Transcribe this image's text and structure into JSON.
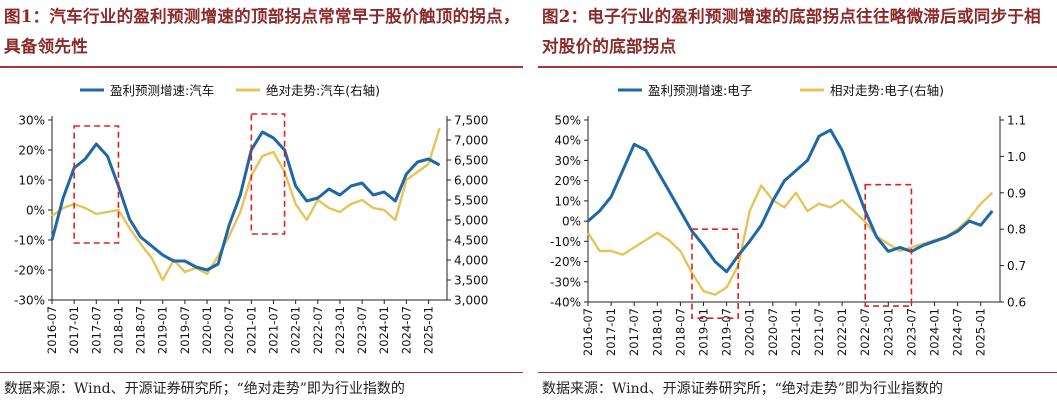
{
  "panels": [
    {
      "title": "图1：汽车行业的盈利预测增速的顶部拐点常常早于股价触顶的拐点，具备领先性",
      "source": "数据来源：Wind、开源证券研究所；“绝对走势”即为行业指数的",
      "chart_data": {
        "type": "line",
        "series": [
          {
            "name": "盈利预测增速:汽车",
            "axis": "left",
            "color": "#1f67a6",
            "x": [
              "2016-07",
              "2016-10",
              "2017-01",
              "2017-04",
              "2017-07",
              "2017-10",
              "2018-01",
              "2018-04",
              "2018-07",
              "2018-10",
              "2019-01",
              "2019-04",
              "2019-07",
              "2019-10",
              "2020-01",
              "2020-04",
              "2020-07",
              "2020-10",
              "2021-01",
              "2021-04",
              "2021-07",
              "2021-10",
              "2022-01",
              "2022-04",
              "2022-07",
              "2022-10",
              "2023-01",
              "2023-04",
              "2023-07",
              "2023-10",
              "2024-01",
              "2024-04",
              "2024-07",
              "2024-10",
              "2025-01",
              "2025-04"
            ],
            "values": [
              -10,
              4,
              14,
              17,
              22,
              18,
              8,
              -3,
              -9,
              -12,
              -15,
              -17,
              -17,
              -19,
              -20,
              -18,
              -5,
              5,
              20,
              26,
              24,
              20,
              8,
              3,
              4,
              7,
              5,
              8,
              9,
              5,
              6,
              3,
              12,
              16,
              17,
              15
            ]
          },
          {
            "name": "绝对走势:汽车(右轴)",
            "axis": "right",
            "color": "#e6c45a",
            "x": [
              "2016-07",
              "2016-10",
              "2017-01",
              "2017-04",
              "2017-07",
              "2017-10",
              "2018-01",
              "2018-04",
              "2018-07",
              "2018-10",
              "2019-01",
              "2019-04",
              "2019-07",
              "2019-10",
              "2020-01",
              "2020-04",
              "2020-07",
              "2020-10",
              "2021-01",
              "2021-04",
              "2021-07",
              "2021-10",
              "2022-01",
              "2022-04",
              "2022-07",
              "2022-10",
              "2023-01",
              "2023-04",
              "2023-07",
              "2023-10",
              "2024-01",
              "2024-04",
              "2024-07",
              "2024-10",
              "2025-01",
              "2025-04"
            ],
            "values": [
              5100,
              5300,
              5400,
              5300,
              5150,
              5200,
              5250,
              4800,
              4400,
              4050,
              3500,
              4000,
              3700,
              3800,
              3650,
              4100,
              4600,
              5200,
              6100,
              6600,
              6700,
              6200,
              5400,
              5000,
              5500,
              5300,
              5200,
              5400,
              5500,
              5300,
              5250,
              5000,
              6000,
              6200,
              6400,
              7300
            ]
          }
        ],
        "y_left": {
          "min": -30,
          "max": 30,
          "ticks": [
            "-30%",
            "-20%",
            "-10%",
            "0%",
            "10%",
            "20%",
            "30%"
          ]
        },
        "y_right": {
          "min": 3000,
          "max": 7500,
          "ticks": [
            "3,000",
            "3,500",
            "4,000",
            "4,500",
            "5,000",
            "5,500",
            "6,000",
            "6,500",
            "7,000",
            "7,500"
          ]
        },
        "x_ticks": [
          "2016-07",
          "2017-01",
          "2017-07",
          "2018-01",
          "2018-07",
          "2019-01",
          "2019-07",
          "2020-01",
          "2020-07",
          "2021-01",
          "2021-07",
          "2022-01",
          "2022-07",
          "2023-01",
          "2023-07",
          "2024-01",
          "2024-07",
          "2025-01"
        ],
        "highlight_boxes": [
          {
            "from": "2017-01",
            "to": "2018-01",
            "y_top": 28,
            "y_bottom": -11
          },
          {
            "from": "2021-01",
            "to": "2021-10",
            "y_top": 32,
            "y_bottom": -8
          }
        ],
        "legend": "top-center"
      }
    },
    {
      "title": "图2：电子行业的盈利预测增速的底部拐点往往略微滞后或同步于相对股价的底部拐点",
      "source": "数据来源：Wind、开源证券研究所；“绝对走势”即为行业指数的",
      "chart_data": {
        "type": "line",
        "series": [
          {
            "name": "盈利预测增速:电子",
            "axis": "left",
            "color": "#1f67a6",
            "x": [
              "2016-07",
              "2016-10",
              "2017-01",
              "2017-04",
              "2017-07",
              "2017-10",
              "2018-01",
              "2018-04",
              "2018-07",
              "2018-10",
              "2019-01",
              "2019-04",
              "2019-07",
              "2019-10",
              "2020-01",
              "2020-04",
              "2020-07",
              "2020-10",
              "2021-01",
              "2021-04",
              "2021-07",
              "2021-10",
              "2022-01",
              "2022-04",
              "2022-07",
              "2022-10",
              "2023-01",
              "2023-04",
              "2023-07",
              "2023-10",
              "2024-01",
              "2024-04",
              "2024-07",
              "2024-10",
              "2025-01",
              "2025-04"
            ],
            "values": [
              0,
              5,
              12,
              25,
              38,
              35,
              25,
              15,
              5,
              -5,
              -12,
              -20,
              -25,
              -17,
              -10,
              -2,
              10,
              20,
              25,
              30,
              42,
              45,
              35,
              20,
              5,
              -8,
              -15,
              -13,
              -15,
              -12,
              -10,
              -8,
              -5,
              0,
              -2,
              5
            ]
          },
          {
            "name": "相对走势:电子(右轴)",
            "axis": "right",
            "color": "#e6c45a",
            "x": [
              "2016-07",
              "2016-10",
              "2017-01",
              "2017-04",
              "2017-07",
              "2017-10",
              "2018-01",
              "2018-04",
              "2018-07",
              "2018-10",
              "2019-01",
              "2019-04",
              "2019-07",
              "2019-10",
              "2020-01",
              "2020-04",
              "2020-07",
              "2020-10",
              "2021-01",
              "2021-04",
              "2021-07",
              "2021-10",
              "2022-01",
              "2022-04",
              "2022-07",
              "2022-10",
              "2023-01",
              "2023-04",
              "2023-07",
              "2023-10",
              "2024-01",
              "2024-04",
              "2024-07",
              "2024-10",
              "2025-01",
              "2025-04"
            ],
            "values": [
              0.79,
              0.74,
              0.74,
              0.73,
              0.75,
              0.77,
              0.79,
              0.77,
              0.74,
              0.68,
              0.63,
              0.62,
              0.64,
              0.7,
              0.85,
              0.92,
              0.88,
              0.86,
              0.9,
              0.85,
              0.87,
              0.86,
              0.88,
              0.85,
              0.82,
              0.78,
              0.76,
              0.74,
              0.75,
              0.76,
              0.77,
              0.78,
              0.8,
              0.83,
              0.87,
              0.9
            ]
          }
        ],
        "y_left": {
          "min": -40,
          "max": 50,
          "ticks": [
            "-40%",
            "-30%",
            "-20%",
            "-10%",
            "0%",
            "10%",
            "20%",
            "30%",
            "40%",
            "50%"
          ]
        },
        "y_right": {
          "min": 0.6,
          "max": 1.1,
          "ticks": [
            "0.6",
            "0.7",
            "0.8",
            "0.9",
            "1.0",
            "1.1"
          ]
        },
        "x_ticks": [
          "2016-07",
          "2017-01",
          "2017-07",
          "2018-01",
          "2018-07",
          "2019-01",
          "2019-07",
          "2020-01",
          "2020-07",
          "2021-01",
          "2021-07",
          "2022-01",
          "2022-07",
          "2023-01",
          "2023-07",
          "2024-01",
          "2024-07",
          "2025-01"
        ],
        "highlight_boxes": [
          {
            "from": "2018-10",
            "to": "2019-10",
            "y_top": -4,
            "y_bottom": -48
          },
          {
            "from": "2022-07",
            "to": "2023-07",
            "y_top": 18,
            "y_bottom": -42
          }
        ],
        "legend": "top-center"
      }
    }
  ]
}
